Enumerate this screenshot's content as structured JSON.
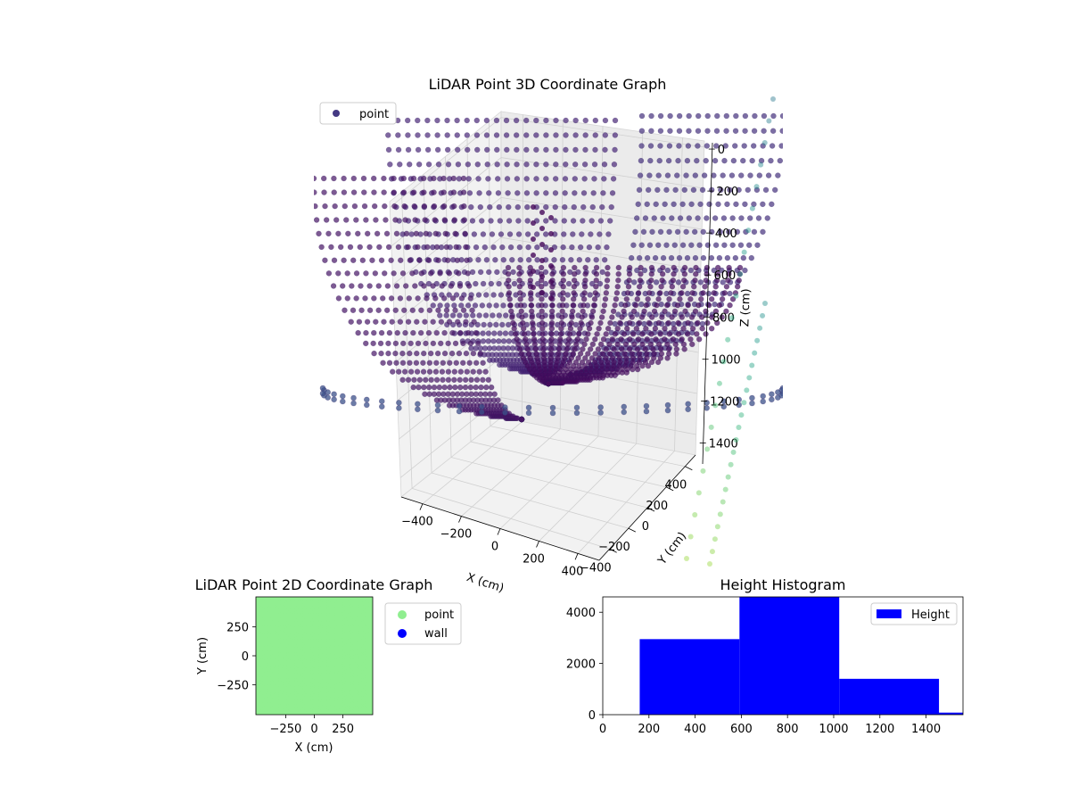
{
  "chart_data": [
    {
      "type": "scatter",
      "subtype": "3d",
      "title": "LiDAR Point 3D Coordinate Graph",
      "xlabel": "X (cm)",
      "ylabel": "Y (cm)",
      "zlabel": "Z (cm)",
      "x_ticks": [
        -400,
        -200,
        0,
        200,
        400
      ],
      "y_ticks": [
        -400,
        -200,
        0,
        200,
        400
      ],
      "z_ticks": [
        0,
        200,
        400,
        600,
        800,
        1000,
        1200,
        1400
      ],
      "z_tick_labels": [
        "0",
        "200",
        "400",
        "600",
        "800",
        "1000",
        "1200",
        "1400"
      ],
      "z_inverted": true,
      "colormap": "viridis",
      "legend": {
        "entries": [
          "point"
        ],
        "location": "upper left"
      },
      "series": [
        {
          "name": "point",
          "color": "#443983"
        }
      ]
    },
    {
      "type": "scatter",
      "title": "LiDAR Point 2D Coordinate Graph",
      "xlabel": "X (cm)",
      "ylabel": "Y (cm)",
      "x_ticks": [
        -250,
        0,
        250
      ],
      "x_tick_labels": [
        "−250",
        "0",
        "250"
      ],
      "y_ticks": [
        -250,
        0,
        250
      ],
      "y_tick_labels": [
        "−250",
        "0",
        "250"
      ],
      "xlim": [
        -510,
        510
      ],
      "ylim": [
        -510,
        510
      ],
      "legend": {
        "entries": [
          "point",
          "wall"
        ],
        "location": "outside right"
      },
      "series": [
        {
          "name": "point",
          "color": "#90ee90"
        },
        {
          "name": "wall",
          "color": "#0000ff"
        }
      ]
    },
    {
      "type": "bar",
      "subtype": "histogram",
      "title": "Height Histogram",
      "x_ticks": [
        0,
        200,
        400,
        600,
        800,
        1000,
        1200,
        1400
      ],
      "y_ticks": [
        0,
        2000,
        4000
      ],
      "xlim": [
        0,
        1560
      ],
      "ylim": [
        0,
        4600
      ],
      "bins": [
        {
          "start": 160,
          "end": 592,
          "count": 2950
        },
        {
          "start": 592,
          "end": 1024,
          "count": 4600
        },
        {
          "start": 1024,
          "end": 1456,
          "count": 1400
        },
        {
          "start": 1456,
          "end": 1560,
          "count": 80
        }
      ],
      "legend": {
        "entries": [
          "Height"
        ],
        "location": "upper right"
      },
      "series": [
        {
          "name": "Height",
          "color": "#0000ff"
        }
      ]
    }
  ]
}
